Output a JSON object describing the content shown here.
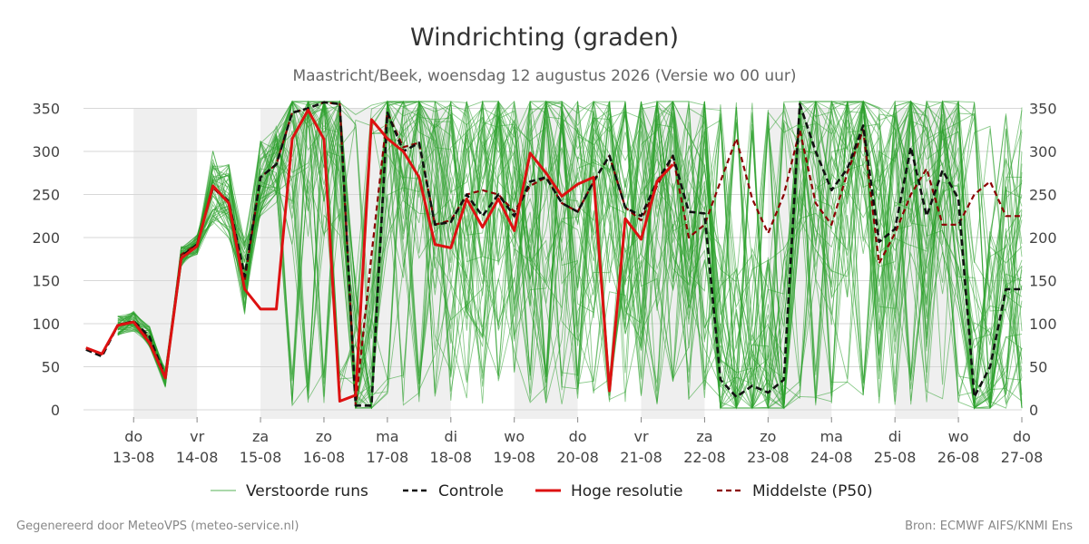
{
  "chart_data": {
    "type": "line",
    "title": "Windrichting (graden)",
    "subtitle": "Maastricht/Beek, woensdag 12 augustus 2026 (Versie wo 00 uur)",
    "ylim": [
      0,
      360
    ],
    "yticks": [
      0,
      50,
      100,
      150,
      200,
      250,
      300,
      350
    ],
    "x_range_days": [
      12.21,
      27.0
    ],
    "x_ticks": [
      {
        "day": 13,
        "weekday": "do",
        "date": "13-08"
      },
      {
        "day": 14,
        "weekday": "vr",
        "date": "14-08"
      },
      {
        "day": 15,
        "weekday": "za",
        "date": "15-08"
      },
      {
        "day": 16,
        "weekday": "zo",
        "date": "16-08"
      },
      {
        "day": 17,
        "weekday": "ma",
        "date": "17-08"
      },
      {
        "day": 18,
        "weekday": "di",
        "date": "18-08"
      },
      {
        "day": 19,
        "weekday": "wo",
        "date": "19-08"
      },
      {
        "day": 20,
        "weekday": "do",
        "date": "20-08"
      },
      {
        "day": 21,
        "weekday": "vr",
        "date": "21-08"
      },
      {
        "day": 22,
        "weekday": "za",
        "date": "22-08"
      },
      {
        "day": 23,
        "weekday": "zo",
        "date": "23-08"
      },
      {
        "day": 24,
        "weekday": "ma",
        "date": "24-08"
      },
      {
        "day": 25,
        "weekday": "di",
        "date": "25-08"
      },
      {
        "day": 26,
        "weekday": "wo",
        "date": "26-08"
      },
      {
        "day": 27,
        "weekday": "do",
        "date": "27-08"
      }
    ],
    "weekend_shading_days": [
      [
        13.0,
        14.0
      ],
      [
        15.0,
        19.0
      ],
      [
        19.0,
        21.0
      ],
      [
        21.0,
        23.0
      ],
      [
        23.0,
        26.0
      ]
    ],
    "grid": true,
    "legend_position": "bottom",
    "legend": [
      {
        "name": "Verstoorde runs",
        "color": "#2ca02c",
        "style": "thin"
      },
      {
        "name": "Controle",
        "color": "#111111",
        "style": "dashed"
      },
      {
        "name": "Hoge resolutie",
        "color": "#dd1111",
        "style": "solid"
      },
      {
        "name": "Middelste (P50)",
        "color": "#8b0000",
        "style": "dashed"
      }
    ],
    "series": [
      {
        "name": "Hoge resolutie",
        "color": "#dd1111",
        "x": [
          12.0,
          12.25,
          12.5,
          12.75,
          13.0,
          13.25,
          13.5,
          13.75,
          14.0,
          14.25,
          14.5,
          14.75,
          15.0,
          15.25,
          15.5,
          15.75,
          16.0,
          16.25,
          16.5,
          16.75,
          17.0,
          17.25,
          17.5,
          17.75,
          18.0,
          18.25,
          18.5,
          18.75,
          19.0,
          19.25,
          19.5,
          19.75,
          20.0,
          20.25,
          20.5,
          20.75,
          21.0,
          21.25,
          21.5,
          21.75
        ],
        "values": [
          62,
          72,
          65,
          98,
          102,
          78,
          37,
          176,
          190,
          260,
          240,
          140,
          117,
          117,
          315,
          348,
          314,
          10,
          17,
          337,
          315,
          300,
          270,
          192,
          188,
          245,
          212,
          245,
          208,
          298,
          275,
          248,
          262,
          270,
          22,
          222,
          198,
          265,
          285,
          null
        ]
      },
      {
        "name": "Controle",
        "color": "#111111",
        "x": [
          12.0,
          12.25,
          12.5,
          12.75,
          13.0,
          13.25,
          13.5,
          13.75,
          14.0,
          14.25,
          14.5,
          14.75,
          15.0,
          15.25,
          15.5,
          15.75,
          16.0,
          16.25,
          16.5,
          16.75,
          17.0,
          17.25,
          17.5,
          17.75,
          18.0,
          18.25,
          18.5,
          18.75,
          19.0,
          19.25,
          19.5,
          19.75,
          20.0,
          20.25,
          20.5,
          20.75,
          21.0,
          21.25,
          21.5,
          21.75,
          22.0,
          22.25,
          22.5,
          22.75,
          23.0,
          23.25,
          23.5,
          23.75,
          24.0,
          24.25,
          24.5,
          24.75,
          25.0,
          25.25,
          25.5,
          25.75,
          26.0,
          26.25,
          26.5,
          26.75,
          27.0
        ],
        "values": [
          65,
          70,
          62,
          98,
          103,
          85,
          38,
          178,
          192,
          258,
          242,
          155,
          270,
          285,
          345,
          350,
          357,
          355,
          5,
          5,
          345,
          300,
          310,
          215,
          218,
          250,
          225,
          250,
          225,
          265,
          270,
          240,
          230,
          265,
          295,
          235,
          225,
          265,
          295,
          230,
          228,
          35,
          15,
          28,
          20,
          35,
          355,
          300,
          255,
          280,
          330,
          195,
          210,
          305,
          225,
          278,
          245,
          15,
          50,
          140,
          140
        ]
      },
      {
        "name": "Middelste (P50)",
        "color": "#8b0000",
        "x": [
          12.0,
          12.25,
          12.5,
          12.75,
          13.0,
          13.25,
          13.5,
          13.75,
          14.0,
          14.25,
          14.5,
          14.75,
          15.0,
          15.25,
          15.5,
          15.75,
          16.0,
          16.25,
          16.5,
          16.75,
          17.0,
          17.25,
          17.5,
          17.75,
          18.0,
          18.25,
          18.5,
          18.75,
          19.0,
          19.25,
          19.5,
          19.75,
          20.0,
          20.25,
          20.5,
          20.75,
          21.0,
          21.25,
          21.5,
          21.75,
          22.0,
          22.25,
          22.5,
          22.75,
          23.0,
          23.25,
          23.5,
          23.75,
          24.0,
          24.25,
          24.5,
          24.75,
          25.0,
          25.25,
          25.5,
          25.75,
          26.0,
          26.25,
          26.5,
          26.75,
          27.0
        ],
        "values": [
          65,
          72,
          64,
          99,
          102,
          82,
          38,
          180,
          192,
          258,
          240,
          150,
          270,
          285,
          345,
          350,
          357,
          355,
          5,
          180,
          345,
          305,
          310,
          215,
          220,
          250,
          255,
          250,
          230,
          260,
          270,
          240,
          230,
          265,
          295,
          235,
          220,
          260,
          295,
          200,
          215,
          265,
          315,
          245,
          205,
          250,
          325,
          240,
          215,
          275,
          325,
          170,
          205,
          250,
          280,
          215,
          215,
          250,
          265,
          225,
          225
        ]
      }
    ]
  },
  "footer": {
    "left": "Gegenereerd door MeteoVPS (meteo-service.nl)",
    "right": "Bron: ECMWF AIFS/KNMI Ens"
  }
}
